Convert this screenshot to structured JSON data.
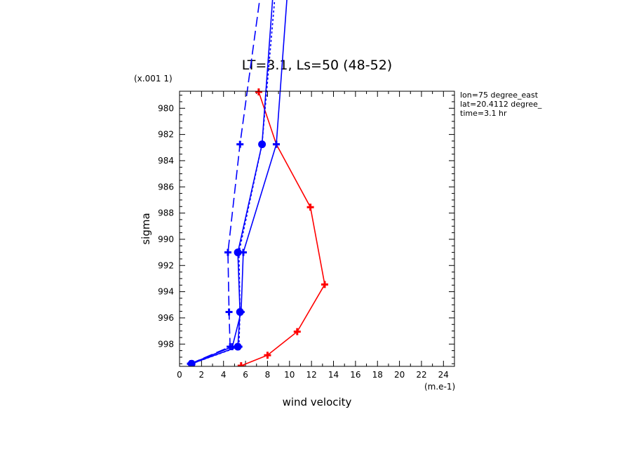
{
  "chart_data": {
    "type": "line",
    "title": "LT=3.1, Ls=50 (48-52)",
    "xlabel": "wind velocity",
    "ylabel": "sigma",
    "x_unit_label": "(m.e-1)",
    "y_unit_label": "(x.001 1)",
    "xlim": [
      0,
      25
    ],
    "ylim": [
      999.7,
      978.7
    ],
    "x_ticks": [
      0,
      2,
      4,
      6,
      8,
      10,
      12,
      14,
      16,
      18,
      20,
      22,
      24
    ],
    "x_tick_labels": [
      "0",
      "2",
      "4",
      "6",
      "8",
      "10",
      "12",
      "14",
      "16",
      "18",
      "20",
      "22",
      "24"
    ],
    "y_ticks": [
      980,
      982,
      984,
      986,
      988,
      990,
      992,
      994,
      996,
      998
    ],
    "y_tick_labels": [
      "980",
      "982",
      "984",
      "986",
      "988",
      "990",
      "992",
      "994",
      "996",
      "998"
    ],
    "annotations": [
      "lon=75 degree_east",
      "lat=20.4112 degree_",
      "time=3.1 hr"
    ],
    "grid": false,
    "series": [
      {
        "color": "#ff0000",
        "dash": "solid",
        "marker": "plus",
        "x": [
          5.6,
          8.0,
          10.7,
          13.2,
          11.9,
          8.8,
          7.2
        ],
        "y": [
          999.65,
          998.85,
          997.05,
          993.45,
          987.55,
          982.75,
          978.75
        ]
      },
      {
        "color": "#0000ff",
        "dash": "solid",
        "marker": "plus",
        "x": [
          1.0,
          4.8,
          5.6,
          5.8,
          8.8,
          10.3
        ],
        "y": [
          999.5,
          998.2,
          995.55,
          991.0,
          982.75,
          965.5
        ]
      },
      {
        "color": "#0000ff",
        "dash": "dashed",
        "marker": "plus",
        "x": [
          1.0,
          4.6,
          4.5,
          4.4,
          5.5,
          8.3
        ],
        "y": [
          999.5,
          998.2,
          995.55,
          991.0,
          982.75,
          965.5
        ]
      },
      {
        "color": "#0000ff",
        "dash": "dotted",
        "marker": "plus",
        "x": [
          1.1,
          5.4,
          5.5,
          5.4,
          7.5,
          9.3
        ],
        "y": [
          999.5,
          998.2,
          995.55,
          991.0,
          982.75,
          965.5
        ]
      },
      {
        "color": "#0000ff",
        "dash": "solid",
        "marker": "dot",
        "x": [
          1.1,
          5.3,
          5.5,
          5.3,
          7.5,
          9.0
        ],
        "y": [
          999.5,
          998.2,
          995.55,
          991.0,
          982.75,
          965.5
        ]
      }
    ]
  }
}
